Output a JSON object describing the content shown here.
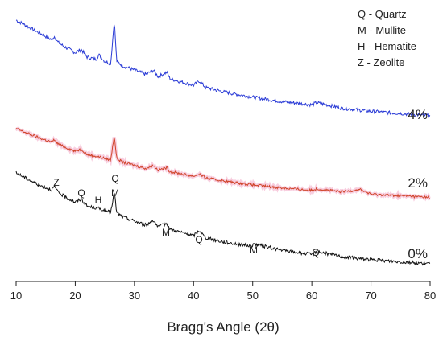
{
  "chart_data": {
    "type": "line",
    "xlabel": "Bragg's Angle (2θ)",
    "ylabel": "",
    "xlim": [
      10,
      80
    ],
    "xticks": [
      10,
      20,
      30,
      40,
      50,
      60,
      70,
      80
    ],
    "y_axis_visible": false,
    "grid": false,
    "legend": {
      "placement": "top-right",
      "entries": [
        "Q - Quartz",
        "M - Mullite",
        "H - Hematite",
        "Z - Zeolite"
      ]
    },
    "series": [
      {
        "name": "4%",
        "color": "#2a3bd6",
        "points": [
          [
            10,
            100
          ],
          [
            12,
            94
          ],
          [
            14,
            88
          ],
          [
            16,
            82
          ],
          [
            16.5,
            85
          ],
          [
            17,
            80
          ],
          [
            18,
            76
          ],
          [
            20,
            70
          ],
          [
            21,
            73
          ],
          [
            22,
            66
          ],
          [
            23.5,
            64
          ],
          [
            24,
            68
          ],
          [
            25,
            62
          ],
          [
            26,
            60
          ],
          [
            26.6,
            100
          ],
          [
            27,
            62
          ],
          [
            28,
            58
          ],
          [
            30,
            54
          ],
          [
            32,
            50
          ],
          [
            33.2,
            54
          ],
          [
            34,
            48
          ],
          [
            35.5,
            52
          ],
          [
            36,
            46
          ],
          [
            38,
            43
          ],
          [
            40,
            40
          ],
          [
            41,
            44
          ],
          [
            42,
            38
          ],
          [
            45,
            34
          ],
          [
            50,
            29
          ],
          [
            55,
            25
          ],
          [
            60,
            22
          ],
          [
            60.8,
            24
          ],
          [
            65,
            19
          ],
          [
            70,
            16
          ],
          [
            75,
            14
          ],
          [
            80,
            12
          ]
        ]
      },
      {
        "name": "2%",
        "color": "#d0442a",
        "points": [
          [
            10,
            100
          ],
          [
            12,
            94
          ],
          [
            14,
            88
          ],
          [
            16,
            83
          ],
          [
            16.5,
            86
          ],
          [
            17,
            81
          ],
          [
            18,
            77
          ],
          [
            20,
            71
          ],
          [
            21,
            74
          ],
          [
            22,
            67
          ],
          [
            24,
            64
          ],
          [
            25,
            62
          ],
          [
            26,
            60
          ],
          [
            26.6,
            92
          ],
          [
            27,
            62
          ],
          [
            28,
            57
          ],
          [
            30,
            53
          ],
          [
            32,
            49
          ],
          [
            33.2,
            53
          ],
          [
            34,
            47
          ],
          [
            35.5,
            50
          ],
          [
            36,
            45
          ],
          [
            38,
            42
          ],
          [
            40,
            39
          ],
          [
            41,
            42
          ],
          [
            42,
            37
          ],
          [
            45,
            33
          ],
          [
            50,
            28
          ],
          [
            55,
            24
          ],
          [
            60,
            21
          ],
          [
            60.8,
            23
          ],
          [
            65,
            19
          ],
          [
            68.2,
            22
          ],
          [
            70,
            16
          ],
          [
            75,
            14
          ],
          [
            80,
            12
          ]
        ]
      },
      {
        "name": "0%",
        "color": "#111111",
        "points": [
          [
            10,
            100
          ],
          [
            12,
            94
          ],
          [
            14,
            88
          ],
          [
            16,
            84
          ],
          [
            16.5,
            87
          ],
          [
            17,
            82
          ],
          [
            18,
            78
          ],
          [
            20,
            72
          ],
          [
            21,
            75
          ],
          [
            22,
            68
          ],
          [
            24,
            66
          ],
          [
            25,
            64
          ],
          [
            26,
            62
          ],
          [
            26.6,
            82
          ],
          [
            27,
            62
          ],
          [
            28,
            58
          ],
          [
            30,
            54
          ],
          [
            32,
            50
          ],
          [
            33.2,
            55
          ],
          [
            34,
            48
          ],
          [
            35.5,
            52
          ],
          [
            36,
            46
          ],
          [
            38,
            43
          ],
          [
            40,
            40
          ],
          [
            41,
            45
          ],
          [
            42,
            38
          ],
          [
            45,
            34
          ],
          [
            50,
            30
          ],
          [
            50.2,
            32
          ],
          [
            55,
            26
          ],
          [
            60,
            22
          ],
          [
            60.8,
            25
          ],
          [
            65,
            20
          ],
          [
            70,
            17
          ],
          [
            75,
            15
          ],
          [
            80,
            13
          ]
        ]
      }
    ],
    "peak_annotations": [
      {
        "series": "0%",
        "x": 16.5,
        "text": "Z"
      },
      {
        "series": "0%",
        "x": 21,
        "text": "Q"
      },
      {
        "series": "0%",
        "x": 24,
        "text": "H"
      },
      {
        "series": "0%",
        "x": 26.6,
        "text": "Q"
      },
      {
        "series": "0%",
        "x": 26.6,
        "text": "M"
      },
      {
        "series": "0%",
        "x": 35.5,
        "text": "M"
      },
      {
        "series": "0%",
        "x": 41,
        "text": "Q"
      },
      {
        "series": "0%",
        "x": 50,
        "text": "M"
      },
      {
        "series": "0%",
        "x": 60.8,
        "text": "Q"
      }
    ]
  }
}
